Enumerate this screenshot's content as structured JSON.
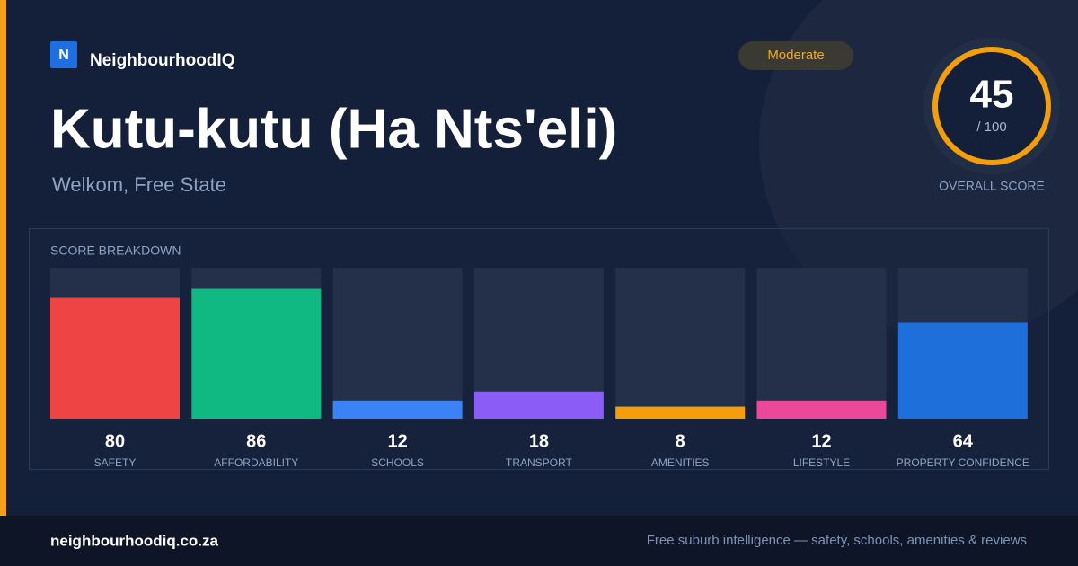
{
  "brand": {
    "logo": "N",
    "name": "NeighbourhoodIQ"
  },
  "title": "Kutu-kutu (Ha Nts'eli)",
  "location": "Welkom, Free State",
  "badge": "Moderate",
  "score": {
    "value": 45,
    "max_label": "/ 100",
    "label": "OVERALL SCORE"
  },
  "chart_data": {
    "type": "bar",
    "title": "SCORE BREAKDOWN",
    "categories": [
      "SAFETY",
      "AFFORDABILITY",
      "SCHOOLS",
      "TRANSPORT",
      "AMENITIES",
      "LIFESTYLE",
      "PROPERTY CONFIDENCE"
    ],
    "values": [
      80,
      86,
      12,
      18,
      8,
      12,
      64
    ],
    "colors": [
      "#ef4444",
      "#10b981",
      "#3b82f6",
      "#8b5cf6",
      "#f59e0b",
      "#ec4899",
      "#1e6fd9"
    ],
    "ylim": [
      0,
      100
    ]
  },
  "footer": {
    "site": "neighbourhoodiq.co.za",
    "tagline": "Free suburb intelligence — safety, schools, amenities & reviews"
  }
}
